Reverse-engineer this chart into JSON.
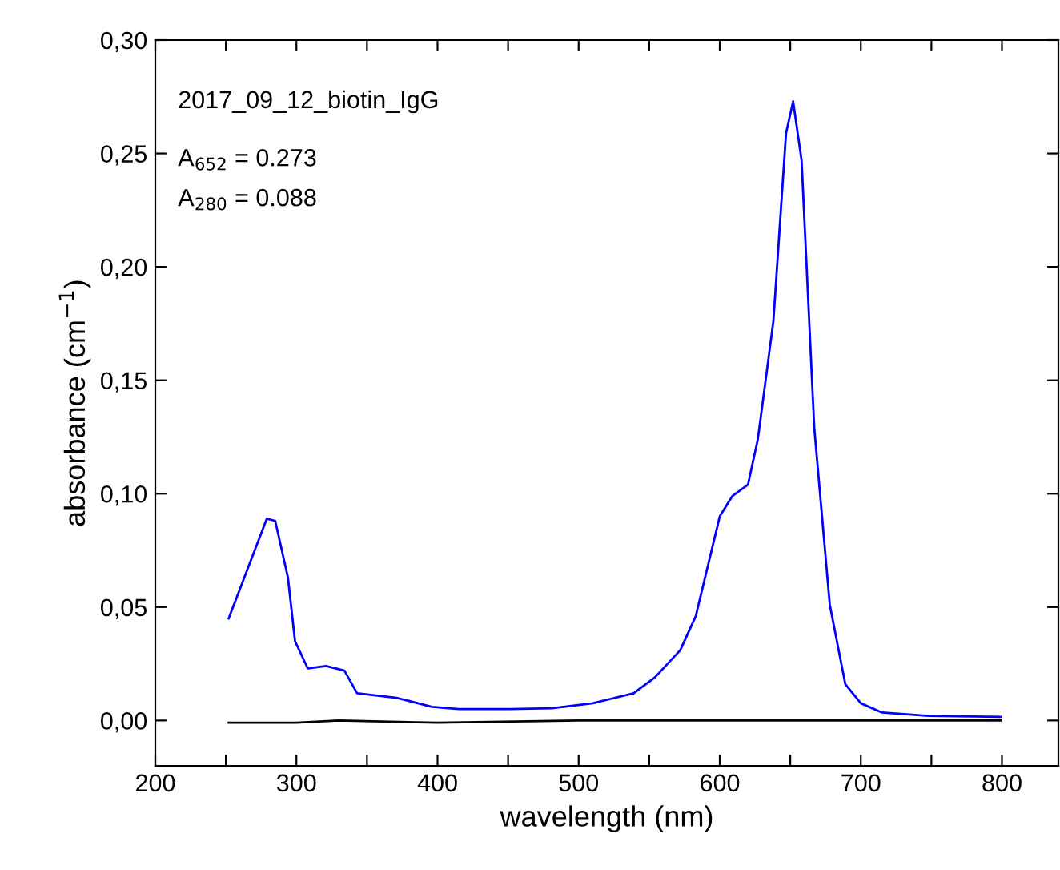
{
  "chart_data": {
    "type": "line",
    "xlabel": "wavelength (nm)",
    "ylabel": "absorbance (cm$^{−1}$)",
    "annotations": [
      "2017_09_12_biotin_IgG",
      "A$_{652}$ = 0.273",
      "A$_{280}$ = 0.088"
    ],
    "xlim": [
      200,
      840
    ],
    "ylim": [
      -0.02,
      0.3
    ],
    "xticks": [
      200,
      {
        "value": 250,
        "label": null
      },
      300,
      {
        "value": 350,
        "label": null
      },
      400,
      {
        "value": 450,
        "label": null
      },
      500,
      {
        "value": 550,
        "label": null
      },
      600,
      {
        "value": 650,
        "label": null
      },
      700,
      {
        "value": 750,
        "label": null
      },
      800
    ],
    "yticks": [
      {
        "value": 0,
        "label": "0,00"
      },
      {
        "value": 0.05,
        "label": "0,05"
      },
      {
        "value": 0.1,
        "label": "0,10"
      },
      {
        "value": 0.15,
        "label": "0,15"
      },
      {
        "value": 0.2,
        "label": "0,20"
      },
      {
        "value": 0.25,
        "label": "0,25"
      },
      {
        "value": 0.3,
        "label": "0,30"
      }
    ],
    "grid": false,
    "line_style": "solid",
    "marker": "none",
    "series": [
      {
        "color": "#0000ff",
        "x": [
          252,
          279,
          285,
          294,
          299,
          308,
          321,
          334,
          343,
          371,
          396,
          415,
          451,
          481,
          510,
          539,
          554,
          572,
          583,
          600,
          609,
          620,
          627,
          638,
          647,
          652,
          658,
          667,
          678,
          689,
          700,
          715,
          748,
          799
        ],
        "values": [
          0.045,
          0.089,
          0.088,
          0.063,
          0.035,
          0.023,
          0.024,
          0.022,
          0.012,
          0.01,
          0.006,
          0.005,
          0.005,
          0.0054,
          0.0076,
          0.012,
          0.019,
          0.031,
          0.046,
          0.09,
          0.099,
          0.104,
          0.124,
          0.176,
          0.259,
          0.273,
          0.247,
          0.129,
          0.051,
          0.016,
          0.0076,
          0.0035,
          0.002,
          0.0016
        ]
      },
      {
        "color": "#000000",
        "x": [
          252,
          300,
          330,
          400,
          500,
          600,
          700,
          799
        ],
        "values": [
          -0.001,
          -0.001,
          0.0,
          -0.001,
          0.0,
          0.0,
          0.0,
          0.0
        ]
      }
    ]
  }
}
